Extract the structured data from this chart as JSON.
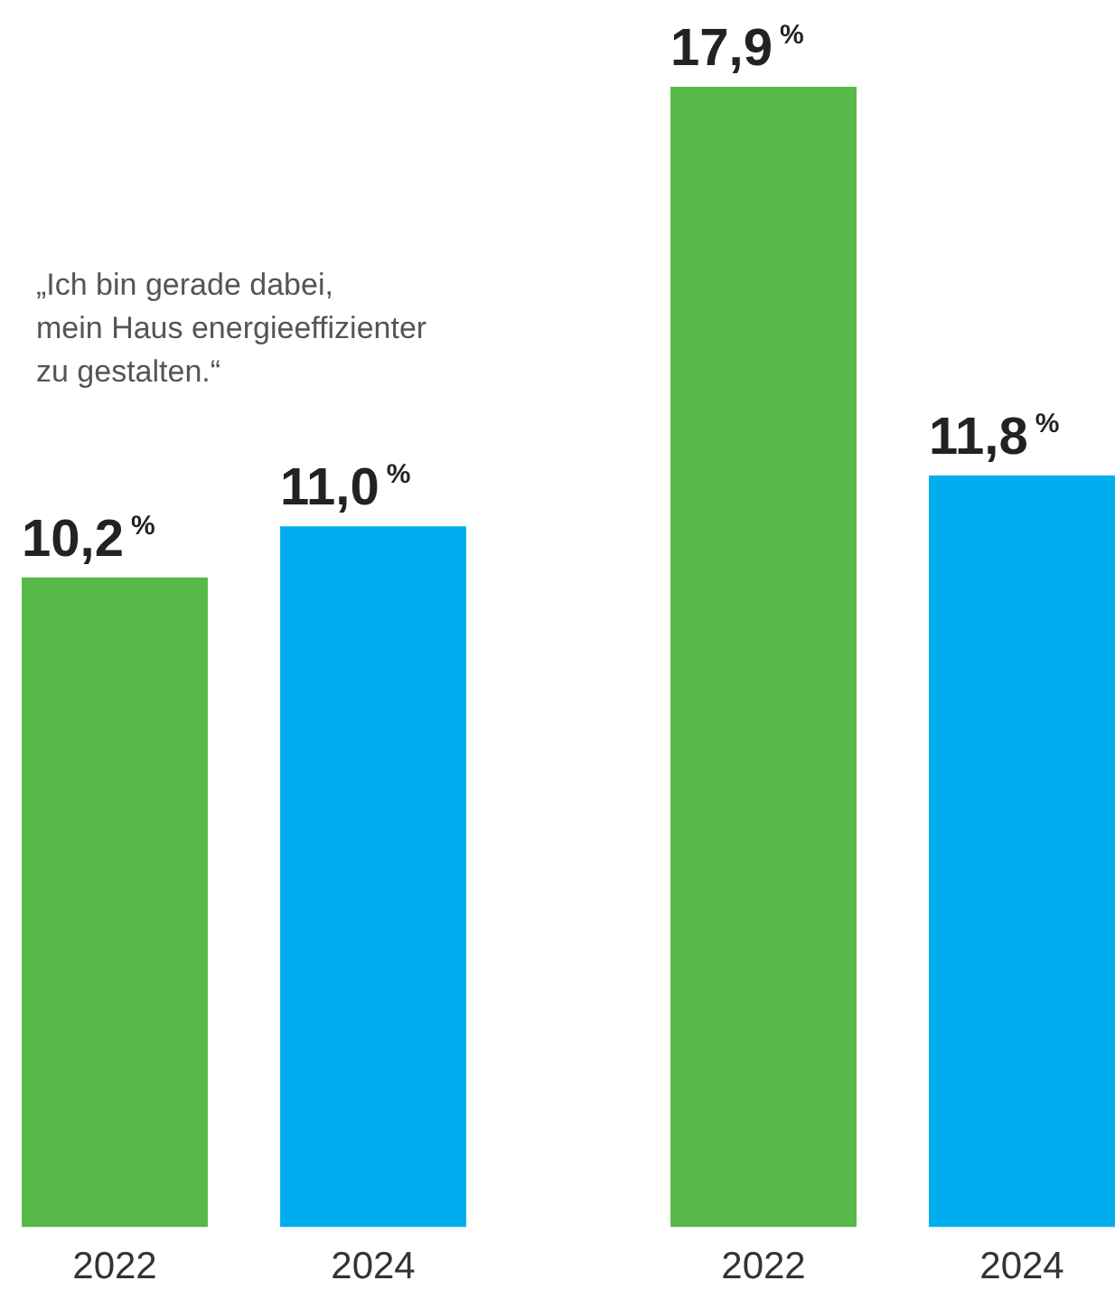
{
  "chart_data": [
    {
      "type": "bar",
      "categories": [
        "2022",
        "2024"
      ],
      "values": [
        10.2,
        11.0
      ],
      "colors": [
        "#57b947",
        "#00aeef"
      ],
      "value_labels": [
        "10,2$^{%}$",
        "11,0$^{%}$"
      ],
      "tick_labels": "x",
      "grid": false,
      "annotations": [
        "„Ich bin gerade dabei,\nmein Haus energieeffizienter\nzu gestalten.“"
      ]
    },
    {
      "type": "bar",
      "categories": [
        "2022",
        "2024"
      ],
      "values": [
        17.9,
        11.8
      ],
      "colors": [
        "#57b947",
        "#00aeef"
      ],
      "value_labels": [
        "17,9$^{%}$",
        "11,8$^{%}$"
      ],
      "tick_labels": "x",
      "grid": false
    }
  ]
}
